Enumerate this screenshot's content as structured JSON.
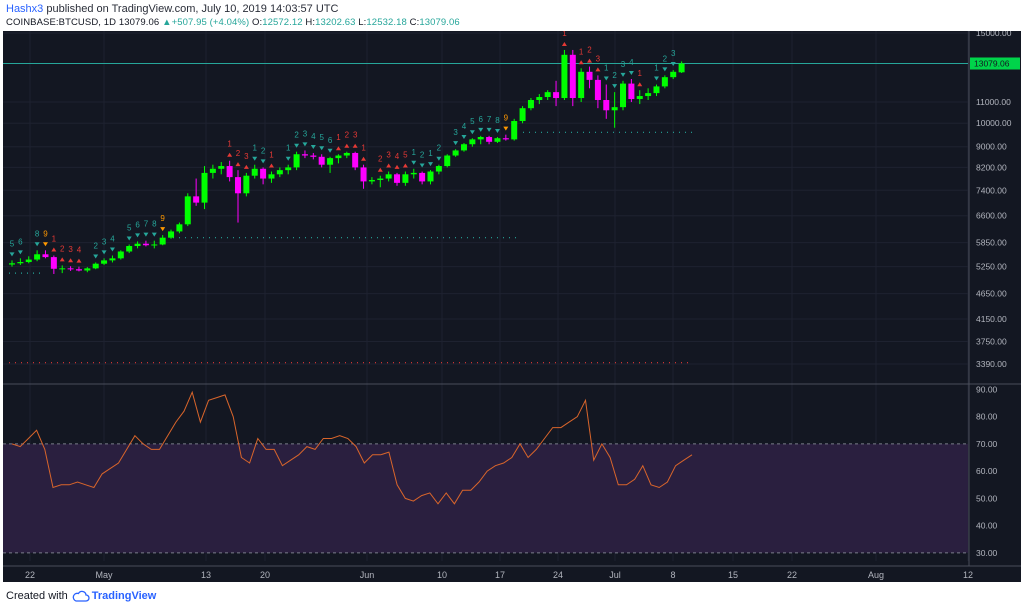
{
  "header": {
    "user": "Hashx3",
    "published_text": "published on TradingView.com, July 10, 2019 14:03:57 UTC"
  },
  "symbol_bar": {
    "symbol": "COINBASE:BTCUSD, 1D",
    "last": "13079.06",
    "change": "+507.95 (+4.04%)",
    "o_label": "O:",
    "o": "12572.12",
    "h_label": "H:",
    "h": "13202.63",
    "l_label": "L:",
    "l": "12532.18",
    "c_label": "C:",
    "c": "13079.06"
  },
  "footer": {
    "created_with": "Created with",
    "brand": "TradingView"
  },
  "colors": {
    "background": "#131722",
    "up_candle": "#00ff00",
    "down_candle": "#ff00ff",
    "up_setup": "#26a69a",
    "sell_setup": "#e53935",
    "rsi_line": "#d9652b",
    "rsi_band": "#2a1f3f"
  },
  "chart_data": [
    {
      "type": "candlestick",
      "y_scale": "log",
      "price_axis_ticks": [
        "15000.00",
        "13079.06",
        "11000.00",
        "10000.00",
        "9000.00",
        "8200.00",
        "7400.00",
        "6600.00",
        "5850.00",
        "5250.00",
        "4650.00",
        "4150.00",
        "3750.00",
        "3390.00"
      ],
      "last_price_label": "13079.06",
      "x_tick_labels": [
        "22",
        "May",
        "13",
        "20",
        "Jun",
        "10",
        "17",
        "24",
        "Jul",
        "8",
        "15",
        "22",
        "Aug",
        "12"
      ],
      "candles": [
        {
          "o": 5300,
          "h": 5400,
          "l": 5250,
          "c": 5330
        },
        {
          "o": 5330,
          "h": 5450,
          "l": 5290,
          "c": 5360
        },
        {
          "o": 5360,
          "h": 5500,
          "l": 5330,
          "c": 5420
        },
        {
          "o": 5420,
          "h": 5650,
          "l": 5380,
          "c": 5550
        },
        {
          "o": 5550,
          "h": 5650,
          "l": 5450,
          "c": 5480
        },
        {
          "o": 5480,
          "h": 5520,
          "l": 5080,
          "c": 5200
        },
        {
          "o": 5200,
          "h": 5280,
          "l": 5100,
          "c": 5210
        },
        {
          "o": 5210,
          "h": 5260,
          "l": 5150,
          "c": 5190
        },
        {
          "o": 5190,
          "h": 5250,
          "l": 5140,
          "c": 5160
        },
        {
          "o": 5160,
          "h": 5240,
          "l": 5120,
          "c": 5210
        },
        {
          "o": 5210,
          "h": 5350,
          "l": 5190,
          "c": 5320
        },
        {
          "o": 5320,
          "h": 5450,
          "l": 5290,
          "c": 5400
        },
        {
          "o": 5400,
          "h": 5520,
          "l": 5350,
          "c": 5450
        },
        {
          "o": 5450,
          "h": 5650,
          "l": 5420,
          "c": 5620
        },
        {
          "o": 5620,
          "h": 5800,
          "l": 5580,
          "c": 5760
        },
        {
          "o": 5760,
          "h": 5880,
          "l": 5700,
          "c": 5820
        },
        {
          "o": 5820,
          "h": 5900,
          "l": 5750,
          "c": 5780
        },
        {
          "o": 5780,
          "h": 5900,
          "l": 5700,
          "c": 5800
        },
        {
          "o": 5800,
          "h": 6050,
          "l": 5780,
          "c": 5980
        },
        {
          "o": 5980,
          "h": 6200,
          "l": 5950,
          "c": 6150
        },
        {
          "o": 6150,
          "h": 6400,
          "l": 6100,
          "c": 6350
        },
        {
          "o": 6350,
          "h": 7300,
          "l": 6300,
          "c": 7200
        },
        {
          "o": 7200,
          "h": 7800,
          "l": 6900,
          "c": 7000
        },
        {
          "o": 7000,
          "h": 8250,
          "l": 6800,
          "c": 8000
        },
        {
          "o": 8000,
          "h": 8300,
          "l": 7800,
          "c": 8150
        },
        {
          "o": 8150,
          "h": 8400,
          "l": 7950,
          "c": 8250
        },
        {
          "o": 8250,
          "h": 8450,
          "l": 7700,
          "c": 7850
        },
        {
          "o": 7850,
          "h": 8100,
          "l": 6400,
          "c": 7300
        },
        {
          "o": 7300,
          "h": 8000,
          "l": 7200,
          "c": 7900
        },
        {
          "o": 7900,
          "h": 8300,
          "l": 7800,
          "c": 8150
        },
        {
          "o": 8150,
          "h": 8200,
          "l": 7600,
          "c": 7800
        },
        {
          "o": 7800,
          "h": 8050,
          "l": 7650,
          "c": 7950
        },
        {
          "o": 7950,
          "h": 8200,
          "l": 7850,
          "c": 8100
        },
        {
          "o": 8100,
          "h": 8300,
          "l": 7950,
          "c": 8200
        },
        {
          "o": 8200,
          "h": 8800,
          "l": 8100,
          "c": 8700
        },
        {
          "o": 8700,
          "h": 8850,
          "l": 8550,
          "c": 8650
        },
        {
          "o": 8650,
          "h": 8750,
          "l": 8500,
          "c": 8600
        },
        {
          "o": 8600,
          "h": 8700,
          "l": 8200,
          "c": 8300
        },
        {
          "o": 8300,
          "h": 8600,
          "l": 8000,
          "c": 8550
        },
        {
          "o": 8550,
          "h": 8700,
          "l": 8350,
          "c": 8650
        },
        {
          "o": 8650,
          "h": 8800,
          "l": 8550,
          "c": 8750
        },
        {
          "o": 8750,
          "h": 8800,
          "l": 8100,
          "c": 8200
        },
        {
          "o": 8200,
          "h": 8300,
          "l": 7450,
          "c": 7700
        },
        {
          "o": 7700,
          "h": 7850,
          "l": 7600,
          "c": 7750
        },
        {
          "o": 7750,
          "h": 7900,
          "l": 7500,
          "c": 7800
        },
        {
          "o": 7800,
          "h": 8050,
          "l": 7700,
          "c": 7950
        },
        {
          "o": 7950,
          "h": 8000,
          "l": 7550,
          "c": 7650
        },
        {
          "o": 7650,
          "h": 8050,
          "l": 7550,
          "c": 7950
        },
        {
          "o": 7950,
          "h": 8150,
          "l": 7800,
          "c": 8000
        },
        {
          "o": 8000,
          "h": 8050,
          "l": 7600,
          "c": 7700
        },
        {
          "o": 7700,
          "h": 8100,
          "l": 7600,
          "c": 8050
        },
        {
          "o": 8050,
          "h": 8300,
          "l": 7950,
          "c": 8250
        },
        {
          "o": 8250,
          "h": 8700,
          "l": 8200,
          "c": 8650
        },
        {
          "o": 8650,
          "h": 8900,
          "l": 8600,
          "c": 8850
        },
        {
          "o": 8850,
          "h": 9150,
          "l": 8800,
          "c": 9100
        },
        {
          "o": 9100,
          "h": 9350,
          "l": 9000,
          "c": 9300
        },
        {
          "o": 9300,
          "h": 9450,
          "l": 9100,
          "c": 9400
        },
        {
          "o": 9400,
          "h": 9450,
          "l": 9100,
          "c": 9200
        },
        {
          "o": 9200,
          "h": 9400,
          "l": 9150,
          "c": 9350
        },
        {
          "o": 9350,
          "h": 9500,
          "l": 9250,
          "c": 9300
        },
        {
          "o": 9300,
          "h": 10200,
          "l": 9250,
          "c": 10100
        },
        {
          "o": 10100,
          "h": 10800,
          "l": 10000,
          "c": 10700
        },
        {
          "o": 10700,
          "h": 11200,
          "l": 10600,
          "c": 11100
        },
        {
          "o": 11100,
          "h": 11400,
          "l": 10900,
          "c": 11250
        },
        {
          "o": 11250,
          "h": 11600,
          "l": 11100,
          "c": 11500
        },
        {
          "o": 11500,
          "h": 12100,
          "l": 10800,
          "c": 11200
        },
        {
          "o": 11200,
          "h": 13900,
          "l": 11100,
          "c": 13600
        },
        {
          "o": 13600,
          "h": 13900,
          "l": 10800,
          "c": 11200
        },
        {
          "o": 11200,
          "h": 12800,
          "l": 11000,
          "c": 12600
        },
        {
          "o": 12600,
          "h": 12900,
          "l": 11700,
          "c": 12150
        },
        {
          "o": 12150,
          "h": 12400,
          "l": 10700,
          "c": 11100
        },
        {
          "o": 11100,
          "h": 11900,
          "l": 10200,
          "c": 10600
        },
        {
          "o": 10600,
          "h": 11500,
          "l": 9800,
          "c": 10750
        },
        {
          "o": 10750,
          "h": 12100,
          "l": 10600,
          "c": 11950
        },
        {
          "o": 11950,
          "h": 12200,
          "l": 11000,
          "c": 11150
        },
        {
          "o": 11150,
          "h": 11600,
          "l": 10900,
          "c": 11300
        },
        {
          "o": 11300,
          "h": 11700,
          "l": 11100,
          "c": 11450
        },
        {
          "o": 11450,
          "h": 11900,
          "l": 11300,
          "c": 11800
        },
        {
          "o": 11800,
          "h": 12400,
          "l": 11700,
          "c": 12300
        },
        {
          "o": 12300,
          "h": 12700,
          "l": 12200,
          "c": 12600
        },
        {
          "o": 12572.12,
          "h": 13202.63,
          "l": 12532.18,
          "c": 13079.06
        }
      ],
      "td_setup_labels": [
        {
          "i": 0,
          "t": "5",
          "type": "buy"
        },
        {
          "i": 1,
          "t": "6",
          "type": "buy"
        },
        {
          "i": 3,
          "t": "8",
          "type": "buy"
        },
        {
          "i": 4,
          "t": "9",
          "type": "buy9"
        },
        {
          "i": 5,
          "t": "1",
          "type": "sell"
        },
        {
          "i": 6,
          "t": "2",
          "type": "sell"
        },
        {
          "i": 7,
          "t": "3",
          "type": "sell"
        },
        {
          "i": 8,
          "t": "4",
          "type": "sell"
        },
        {
          "i": 10,
          "t": "2",
          "type": "buy"
        },
        {
          "i": 11,
          "t": "3",
          "type": "buy"
        },
        {
          "i": 12,
          "t": "4",
          "type": "buy"
        },
        {
          "i": 14,
          "t": "5",
          "type": "buy"
        },
        {
          "i": 15,
          "t": "6",
          "type": "buy"
        },
        {
          "i": 16,
          "t": "7",
          "type": "buy"
        },
        {
          "i": 17,
          "t": "8",
          "type": "buy"
        },
        {
          "i": 18,
          "t": "9",
          "type": "buy9"
        },
        {
          "i": 26,
          "t": "1",
          "type": "sell"
        },
        {
          "i": 27,
          "t": "2",
          "type": "sell"
        },
        {
          "i": 28,
          "t": "3",
          "type": "sell"
        },
        {
          "i": 29,
          "t": "1",
          "type": "buy"
        },
        {
          "i": 30,
          "t": "2",
          "type": "buy"
        },
        {
          "i": 31,
          "t": "1",
          "type": "sell"
        },
        {
          "i": 33,
          "t": "1",
          "type": "buy"
        },
        {
          "i": 34,
          "t": "2",
          "type": "buy"
        },
        {
          "i": 35,
          "t": "3",
          "type": "buy"
        },
        {
          "i": 36,
          "t": "4",
          "type": "buy"
        },
        {
          "i": 37,
          "t": "5",
          "type": "buy"
        },
        {
          "i": 38,
          "t": "6",
          "type": "buy"
        },
        {
          "i": 39,
          "t": "1",
          "type": "sell"
        },
        {
          "i": 40,
          "t": "2",
          "type": "sell"
        },
        {
          "i": 41,
          "t": "3",
          "type": "sell"
        },
        {
          "i": 42,
          "t": "1",
          "type": "sell"
        },
        {
          "i": 44,
          "t": "2",
          "type": "sell"
        },
        {
          "i": 45,
          "t": "3",
          "type": "sell"
        },
        {
          "i": 46,
          "t": "4",
          "type": "sell"
        },
        {
          "i": 47,
          "t": "5",
          "type": "sell"
        },
        {
          "i": 48,
          "t": "1",
          "type": "buy"
        },
        {
          "i": 49,
          "t": "2",
          "type": "buy"
        },
        {
          "i": 50,
          "t": "1",
          "type": "buy"
        },
        {
          "i": 51,
          "t": "2",
          "type": "buy"
        },
        {
          "i": 53,
          "t": "3",
          "type": "buy"
        },
        {
          "i": 54,
          "t": "4",
          "type": "buy"
        },
        {
          "i": 55,
          "t": "5",
          "type": "buy"
        },
        {
          "i": 56,
          "t": "6",
          "type": "buy"
        },
        {
          "i": 57,
          "t": "7",
          "type": "buy"
        },
        {
          "i": 58,
          "t": "8",
          "type": "buy"
        },
        {
          "i": 59,
          "t": "9",
          "type": "buy9"
        },
        {
          "i": 66,
          "t": "1",
          "type": "sell"
        },
        {
          "i": 68,
          "t": "1",
          "type": "sell"
        },
        {
          "i": 69,
          "t": "2",
          "type": "sell"
        },
        {
          "i": 70,
          "t": "3",
          "type": "sell"
        },
        {
          "i": 71,
          "t": "1",
          "type": "buy"
        },
        {
          "i": 72,
          "t": "2",
          "type": "buy"
        },
        {
          "i": 73,
          "t": "3",
          "type": "buy"
        },
        {
          "i": 74,
          "t": "4",
          "type": "buy"
        },
        {
          "i": 75,
          "t": "1",
          "type": "sell"
        },
        {
          "i": 77,
          "t": "1",
          "type": "buy"
        },
        {
          "i": 78,
          "t": "2",
          "type": "buy"
        },
        {
          "i": 79,
          "t": "3",
          "type": "buy"
        }
      ]
    },
    {
      "type": "line",
      "indicator": "RSI",
      "y_axis_ticks": [
        "90.00",
        "80.00",
        "70.00",
        "60.00",
        "50.00",
        "40.00",
        "30.00"
      ],
      "ylim": [
        27,
        92
      ],
      "band": [
        30,
        70
      ],
      "values": [
        70,
        69,
        72,
        75,
        68,
        54,
        55,
        55,
        56,
        55,
        54,
        59,
        61,
        63,
        68,
        73,
        70,
        68,
        68,
        73,
        78,
        82,
        89,
        78,
        86,
        87,
        88,
        80,
        65,
        63,
        72,
        68,
        68,
        62,
        64,
        66,
        69,
        68,
        72,
        72,
        73,
        72,
        69,
        63,
        66,
        66,
        67,
        55,
        50,
        49,
        51,
        52,
        48,
        52,
        48,
        53,
        53,
        56,
        60,
        62,
        63,
        65,
        70,
        65,
        68,
        72,
        76,
        76,
        78,
        80,
        86,
        64,
        70,
        65,
        55,
        55,
        57,
        62,
        55,
        54,
        56,
        62,
        64,
        66
      ]
    }
  ]
}
